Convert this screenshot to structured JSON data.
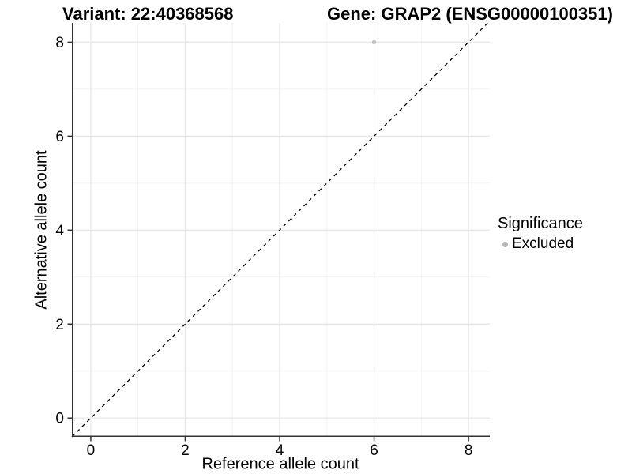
{
  "figure": {
    "title_left": "Variant: 22:40368568",
    "title_right": "Gene: GRAP2 (ENSG00000100351)"
  },
  "chart_data": {
    "type": "scatter",
    "title": "Variant: 22:40368568 | Gene: GRAP2 (ENSG00000100351)",
    "xlabel": "Reference allele count",
    "ylabel": "Alternative allele count",
    "xlim": [
      -0.4,
      8.45
    ],
    "ylim": [
      -0.4,
      8.41
    ],
    "x_ticks": [
      0,
      2,
      4,
      6,
      8
    ],
    "y_ticks": [
      0,
      2,
      4,
      6,
      8
    ],
    "x_minor_ticks": [
      1,
      3,
      5,
      7
    ],
    "y_minor_ticks": [
      1,
      3,
      5,
      7
    ],
    "grid": "major and minor gridlines on white panel, left and bottom axis lines only",
    "points": [
      {
        "x": 6,
        "y": 8,
        "series": "Excluded"
      }
    ],
    "reference_line": {
      "slope": 1,
      "intercept": 0,
      "style": "dashed",
      "color": "#000000"
    },
    "legend": {
      "title": "Significance",
      "position": "right",
      "entries": [
        {
          "label": "Excluded",
          "color": "#b5b5b5"
        }
      ]
    },
    "colors": {
      "point": "#c2c2c2",
      "grid_major": "#e9e9e9",
      "grid_minor": "#f4f4f4",
      "axis": "#333333",
      "text": "#000000"
    }
  }
}
